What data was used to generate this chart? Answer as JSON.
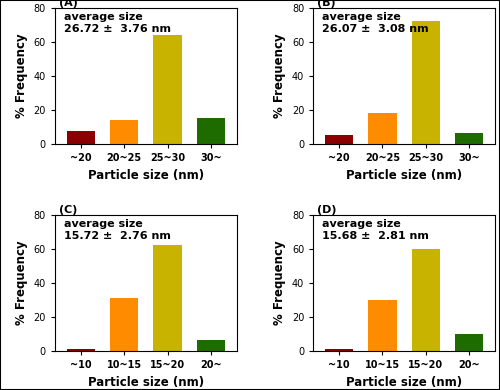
{
  "panels": [
    {
      "label": "(A)",
      "avg_text": "average size\n26.72 ±  3.76 nm",
      "categories": [
        "~20",
        "20~25",
        "25~30",
        "30~"
      ],
      "values": [
        7.5,
        14,
        64,
        15
      ],
      "colors": [
        "#8B0000",
        "#FF8C00",
        "#C8B400",
        "#1E6B00"
      ],
      "ylim": [
        0,
        80
      ],
      "yticks": [
        0,
        20,
        40,
        60,
        80
      ],
      "xlabel": "Particle size (nm)",
      "ylabel": "% Frequency"
    },
    {
      "label": "(B)",
      "avg_text": "average size\n26.07 ±  3.08 nm",
      "categories": [
        "~20",
        "20~25",
        "25~30",
        "30~"
      ],
      "values": [
        5,
        18,
        72,
        6.5
      ],
      "colors": [
        "#8B0000",
        "#FF8C00",
        "#C8B400",
        "#1E6B00"
      ],
      "ylim": [
        0,
        80
      ],
      "yticks": [
        0,
        20,
        40,
        60,
        80
      ],
      "xlabel": "Particle size (nm)",
      "ylabel": "% Frequency"
    },
    {
      "label": "(C)",
      "avg_text": "average size\n15.72 ±  2.76 nm",
      "categories": [
        "~10",
        "10~15",
        "15~20",
        "20~"
      ],
      "values": [
        1.2,
        31,
        62,
        6.5
      ],
      "colors": [
        "#8B0000",
        "#FF8C00",
        "#C8B400",
        "#1E6B00"
      ],
      "ylim": [
        0,
        80
      ],
      "yticks": [
        0,
        20,
        40,
        60,
        80
      ],
      "xlabel": "Particle size (nm)",
      "ylabel": "% Frequency"
    },
    {
      "label": "(D)",
      "avg_text": "average size\n15.68 ±  2.81 nm",
      "categories": [
        "~10",
        "10~15",
        "15~20",
        "20~"
      ],
      "values": [
        1.2,
        30,
        60,
        10
      ],
      "colors": [
        "#8B0000",
        "#FF8C00",
        "#C8B400",
        "#1E6B00"
      ],
      "ylim": [
        0,
        80
      ],
      "yticks": [
        0,
        20,
        40,
        60,
        80
      ],
      "xlabel": "Particle size (nm)",
      "ylabel": "% Frequency"
    }
  ],
  "background_color": "#ffffff",
  "figure_border_color": "#000000",
  "label_fontsize": 8,
  "tick_fontsize": 7,
  "avg_text_fontsize": 8,
  "axis_label_fontsize": 8.5
}
